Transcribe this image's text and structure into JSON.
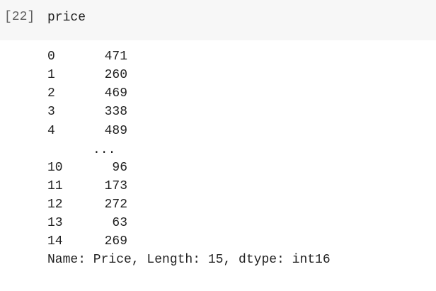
{
  "input": {
    "execution_count": "[22]",
    "code": "price"
  },
  "output": {
    "rows": [
      {
        "index": "0",
        "value": "471"
      },
      {
        "index": "1",
        "value": "260"
      },
      {
        "index": "2",
        "value": "469"
      },
      {
        "index": "3",
        "value": "338"
      },
      {
        "index": "4",
        "value": "489"
      },
      {
        "index": "10",
        "value": "96"
      },
      {
        "index": "11",
        "value": "173"
      },
      {
        "index": "12",
        "value": "272"
      },
      {
        "index": "13",
        "value": "63"
      },
      {
        "index": "14",
        "value": "269"
      }
    ],
    "ellipsis": "...",
    "footer": "Name: Price, Length: 15, dtype: int16"
  },
  "colors": {
    "input_background": "#f7f7f7",
    "output_background": "#ffffff",
    "text": "#212121",
    "execution_count": "#616161"
  }
}
